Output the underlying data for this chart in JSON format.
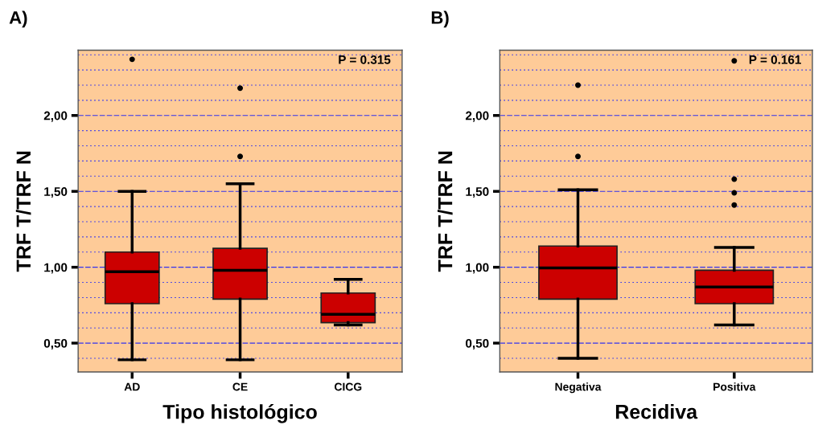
{
  "chart_data": [
    {
      "type": "box",
      "title": "A)",
      "xlabel": "Tipo histológico",
      "ylabel": "TRF T/TRF N",
      "categories": [
        "AD",
        "CE",
        "CICG"
      ],
      "series": [
        {
          "color": "#cc0000",
          "boxes": [
            {
              "low": 0.39,
              "q1": 0.76,
              "median": 0.97,
              "q3": 1.1,
              "high": 1.5,
              "outliers": [
                2.37
              ]
            },
            {
              "low": 0.39,
              "q1": 0.79,
              "median": 0.98,
              "q3": 1.125,
              "high": 1.55,
              "outliers": [
                2.18,
                1.73
              ]
            },
            {
              "low": 0.62,
              "q1": 0.635,
              "median": 0.69,
              "q3": 0.83,
              "high": 0.92
            }
          ]
        }
      ],
      "ylim": [
        0.31,
        2.43
      ],
      "yticks": [
        {
          "value": 0.4,
          "label": null
        },
        {
          "value": 0.5,
          "label": "0,50"
        },
        {
          "value": 0.6,
          "label": null
        },
        {
          "value": 0.7,
          "label": null
        },
        {
          "value": 0.8,
          "label": null
        },
        {
          "value": 0.9,
          "label": null
        },
        {
          "value": 1.0,
          "label": "1,00"
        },
        {
          "value": 1.1,
          "label": null
        },
        {
          "value": 1.2,
          "label": null
        },
        {
          "value": 1.3,
          "label": null
        },
        {
          "value": 1.4,
          "label": null
        },
        {
          "value": 1.5,
          "label": "1,50"
        },
        {
          "value": 1.6,
          "label": null
        },
        {
          "value": 1.7,
          "label": null
        },
        {
          "value": 1.8,
          "label": null
        },
        {
          "value": 1.9,
          "label": null
        },
        {
          "value": 2.0,
          "label": "2,00"
        },
        {
          "value": 2.1,
          "label": null
        },
        {
          "value": 2.2,
          "label": null
        },
        {
          "value": 2.3,
          "label": null
        },
        {
          "value": 2.4,
          "label": null
        }
      ],
      "grid": "y",
      "annotations": [
        "P = 0.315"
      ]
    },
    {
      "type": "box",
      "title": "B)",
      "xlabel": "Recidiva",
      "ylabel": "TRF T/TRF N",
      "categories": [
        "Negativa",
        "Positiva"
      ],
      "series": [
        {
          "color": "#cc0000",
          "boxes": [
            {
              "low": 0.4,
              "q1": 0.79,
              "median": 0.995,
              "q3": 1.14,
              "high": 1.51,
              "outliers": [
                2.2,
                1.73
              ]
            },
            {
              "low": 0.62,
              "q1": 0.76,
              "median": 0.87,
              "q3": 0.98,
              "high": 1.13,
              "outliers": [
                2.36,
                1.58,
                1.49,
                1.41
              ]
            }
          ]
        }
      ],
      "ylim": [
        0.31,
        2.43
      ],
      "yticks": [
        {
          "value": 0.4,
          "label": null
        },
        {
          "value": 0.5,
          "label": "0,50"
        },
        {
          "value": 0.6,
          "label": null
        },
        {
          "value": 0.7,
          "label": null
        },
        {
          "value": 0.8,
          "label": null
        },
        {
          "value": 0.9,
          "label": null
        },
        {
          "value": 1.0,
          "label": "1,00"
        },
        {
          "value": 1.1,
          "label": null
        },
        {
          "value": 1.2,
          "label": null
        },
        {
          "value": 1.3,
          "label": null
        },
        {
          "value": 1.4,
          "label": null
        },
        {
          "value": 1.5,
          "label": "1,50"
        },
        {
          "value": 1.6,
          "label": null
        },
        {
          "value": 1.7,
          "label": null
        },
        {
          "value": 1.8,
          "label": null
        },
        {
          "value": 1.9,
          "label": null
        },
        {
          "value": 2.0,
          "label": "2,00"
        },
        {
          "value": 2.1,
          "label": null
        },
        {
          "value": 2.2,
          "label": null
        },
        {
          "value": 2.3,
          "label": null
        },
        {
          "value": 2.4,
          "label": null
        }
      ],
      "grid": "y",
      "annotations": [
        "P = 0.161"
      ]
    }
  ]
}
